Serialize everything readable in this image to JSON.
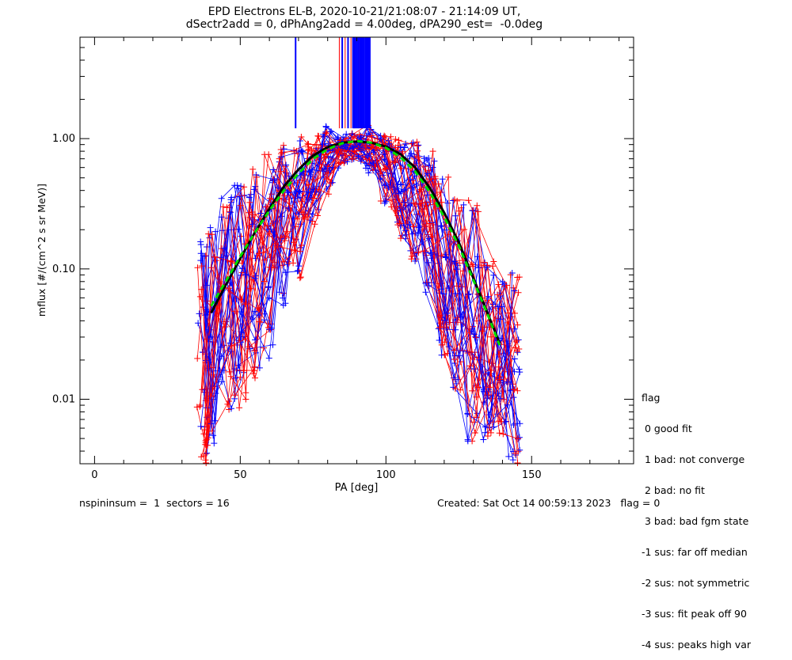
{
  "chart_data": {
    "type": "line",
    "title_lines": [
      "EPD Electrons EL-B, 2020-10-21/21:08:07 - 21:14:09 UT,",
      "dSectr2add = 0, dPhAng2add = 4.00deg, dPA290_est=  -0.0deg"
    ],
    "xlabel": "PA [deg]",
    "ylabel": "mflux [#/(cm^2 s sr MeV)]",
    "xlim": [
      -5,
      185
    ],
    "ylim": [
      0.0032,
      6.0
    ],
    "yscale": "log",
    "x_ticks": [
      0,
      50,
      100,
      150
    ],
    "x_tick_labels": [
      "0",
      "50",
      "100",
      "150"
    ],
    "y_ticks": [
      0.01,
      0.1,
      1.0
    ],
    "y_tick_labels": [
      "0.01",
      "0.10",
      "1.00"
    ],
    "series_colors": {
      "red": "#ff0000",
      "blue": "#0000ff",
      "median": "#000000",
      "fit": "#00dd00"
    },
    "median_curve": {
      "x": [
        40,
        45,
        50,
        55,
        60,
        65,
        70,
        75,
        80,
        85,
        90,
        95,
        100,
        105,
        110,
        115,
        120,
        125,
        130,
        135,
        139
      ],
      "y": [
        0.046,
        0.075,
        0.12,
        0.19,
        0.29,
        0.43,
        0.58,
        0.74,
        0.86,
        0.93,
        0.95,
        0.93,
        0.87,
        0.76,
        0.6,
        0.42,
        0.27,
        0.16,
        0.085,
        0.045,
        0.027
      ]
    },
    "fit_curve": {
      "x": [
        40,
        45,
        50,
        55,
        60,
        65,
        70,
        75,
        80,
        85,
        90,
        95,
        100,
        105,
        110,
        115,
        120,
        125,
        130,
        135,
        139
      ],
      "y": [
        0.052,
        0.08,
        0.125,
        0.19,
        0.28,
        0.4,
        0.54,
        0.7,
        0.83,
        0.92,
        0.96,
        0.93,
        0.85,
        0.72,
        0.56,
        0.39,
        0.25,
        0.15,
        0.082,
        0.044,
        0.026
      ]
    },
    "spread": [
      {
        "x": 37,
        "y": [
          0.07,
          0.15,
          0.11,
          0.045,
          0.022,
          0.012,
          0.0085,
          0.0055,
          0.0035
        ]
      },
      {
        "x": 40,
        "y": [
          0.19,
          0.11,
          0.05,
          0.03,
          0.018,
          0.011,
          0.0075,
          0.005
        ]
      },
      {
        "x": 45,
        "y": [
          0.32,
          0.22,
          0.13,
          0.07,
          0.04,
          0.025,
          0.015,
          0.009
        ]
      },
      {
        "x": 50,
        "y": [
          0.42,
          0.3,
          0.18,
          0.1,
          0.055,
          0.03,
          0.017,
          0.01
        ]
      },
      {
        "x": 55,
        "y": [
          0.55,
          0.38,
          0.24,
          0.14,
          0.08,
          0.045,
          0.025,
          0.016
        ]
      },
      {
        "x": 60,
        "y": [
          0.75,
          0.52,
          0.33,
          0.2,
          0.12,
          0.07,
          0.04,
          0.024
        ]
      },
      {
        "x": 65,
        "y": [
          0.82,
          0.6,
          0.4,
          0.26,
          0.17,
          0.1,
          0.06
        ]
      },
      {
        "x": 70,
        "y": [
          0.9,
          0.72,
          0.52,
          0.36,
          0.24,
          0.16,
          0.1
        ]
      },
      {
        "x": 75,
        "y": [
          0.95,
          0.82,
          0.66,
          0.5,
          0.36,
          0.25
        ]
      },
      {
        "x": 80,
        "y": [
          1.1,
          0.92,
          0.8,
          0.68,
          0.55,
          0.42
        ]
      },
      {
        "x": 85,
        "y": [
          0.97,
          0.9,
          0.84,
          0.76,
          0.66
        ]
      },
      {
        "x": 90,
        "y": [
          0.97,
          0.92,
          0.86,
          0.8,
          0.74
        ]
      },
      {
        "x": 95,
        "y": [
          1.12,
          0.95,
          0.85,
          0.75,
          0.62
        ]
      },
      {
        "x": 100,
        "y": [
          0.95,
          0.85,
          0.72,
          0.58,
          0.44,
          0.32
        ]
      },
      {
        "x": 105,
        "y": [
          0.9,
          0.75,
          0.58,
          0.42,
          0.3,
          0.2
        ]
      },
      {
        "x": 110,
        "y": [
          0.85,
          0.65,
          0.46,
          0.3,
          0.2,
          0.13
        ]
      },
      {
        "x": 115,
        "y": [
          0.7,
          0.5,
          0.33,
          0.2,
          0.12,
          0.075
        ]
      },
      {
        "x": 120,
        "y": [
          0.45,
          0.3,
          0.2,
          0.12,
          0.07,
          0.04,
          0.025
        ]
      },
      {
        "x": 125,
        "y": [
          0.3,
          0.18,
          0.11,
          0.065,
          0.038,
          0.022,
          0.013
        ]
      },
      {
        "x": 130,
        "y": [
          0.3,
          0.11,
          0.06,
          0.035,
          0.02,
          0.012,
          0.0075,
          0.005
        ]
      },
      {
        "x": 135,
        "y": [
          0.1,
          0.055,
          0.032,
          0.018,
          0.011,
          0.007,
          0.005
        ]
      },
      {
        "x": 140,
        "y": [
          0.07,
          0.045,
          0.03,
          0.02,
          0.013,
          0.009,
          0.006
        ]
      },
      {
        "x": 144,
        "y": [
          0.093,
          0.068,
          0.04,
          0.025,
          0.018,
          0.012,
          0.0058,
          0.0038
        ]
      }
    ],
    "vertical_markers": {
      "x_red": [
        84,
        86,
        88,
        90,
        91,
        93
      ],
      "x_blue": [
        69,
        85,
        87,
        89,
        89.5,
        90.5,
        91.5,
        92,
        93.5,
        94
      ],
      "y_top": 6.0,
      "y_bottom": 1.2
    },
    "legend_placement": "right",
    "legend_title": "flag",
    "legend_entries": [
      " 0 good fit",
      " 1 bad: not converge",
      " 2 bad: no fit",
      " 3 bad: bad fgm state",
      "-1 sus: far off median",
      "-2 sus: not symmetric",
      "-3 sus: fit peak off 90",
      "-4 sus: peaks high var"
    ]
  },
  "footer": {
    "left": "nspininsum =  1  sectors = 16",
    "right": "Created: Sat Oct 14 00:59:13 2023   flag = 0"
  }
}
